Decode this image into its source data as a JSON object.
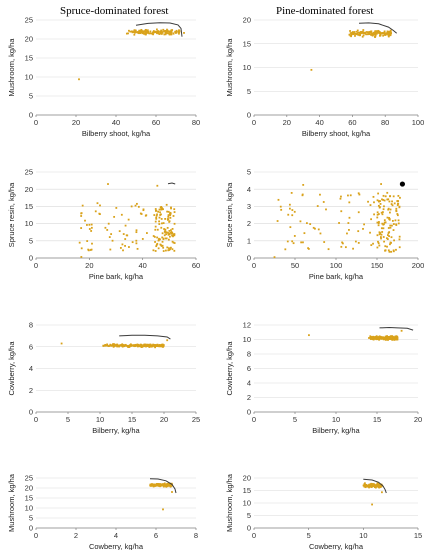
{
  "figure": {
    "column_titles": [
      "Spruce-dominated forest",
      "Pine-dominated forest"
    ]
  },
  "colors": {
    "points": "#d9a21b",
    "frontier": "#3a3a3a",
    "highlight": "#000000",
    "grid": "#d9d9d9",
    "axis": "#7f7f7f"
  },
  "chart_data": [
    {
      "id": "spruce-mushroom-bilberry",
      "type": "scatter",
      "title": "",
      "xlabel": "Bilberry shoot, kg/ha",
      "ylabel": "Mushroom, kg/ha",
      "xlim": [
        0,
        80
      ],
      "ylim": [
        0,
        25
      ],
      "xticks": [
        0,
        20,
        40,
        60,
        80
      ],
      "yticks": [
        0,
        5,
        10,
        15,
        20,
        25
      ],
      "cluster": {
        "x_range": [
          45,
          72
        ],
        "y_center": 21.8,
        "y_spread": 0.9,
        "n": 150
      },
      "outliers": [
        [
          21.5,
          9.4
        ],
        [
          74,
          21.6
        ]
      ],
      "frontier": [
        [
          50,
          23.6
        ],
        [
          56,
          24.1
        ],
        [
          62,
          24.3
        ],
        [
          67,
          24.2
        ],
        [
          71,
          23.7
        ],
        [
          72.5,
          22.8
        ],
        [
          73,
          20.6
        ]
      ]
    },
    {
      "id": "pine-mushroom-bilberry",
      "type": "scatter",
      "title": "",
      "xlabel": "Bilberry shoot, kg/ha",
      "ylabel": "Mushroom, kg/ha",
      "xlim": [
        0,
        100
      ],
      "ylim": [
        0,
        20
      ],
      "xticks": [
        0,
        20,
        40,
        60,
        80,
        100
      ],
      "yticks": [
        0,
        5,
        10,
        15,
        20
      ],
      "cluster": {
        "x_range": [
          58,
          84
        ],
        "y_center": 17.2,
        "y_spread": 0.9,
        "n": 150
      },
      "outliers": [
        [
          35,
          9.5
        ]
      ],
      "frontier": [
        [
          64,
          19.3
        ],
        [
          70,
          19.4
        ],
        [
          76,
          19.2
        ],
        [
          82,
          18.5
        ],
        [
          85,
          17.8
        ],
        [
          87,
          17.2
        ]
      ]
    },
    {
      "id": "spruce-resin-pinebark",
      "type": "scatter",
      "title": "",
      "xlabel": "Pine bark, kg/ha",
      "ylabel": "Spruce resin, kg/ha",
      "xlim": [
        0,
        60
      ],
      "ylim": [
        0,
        25
      ],
      "xticks": [
        0,
        20,
        40,
        60
      ],
      "yticks": [
        0,
        5,
        10,
        15,
        20,
        25
      ],
      "scatter_bands": [
        {
          "x_range": [
            16,
            42
          ],
          "y_range": [
            2,
            16
          ],
          "n": 65
        },
        {
          "x_range": [
            44,
            52
          ],
          "y_range": [
            2,
            16
          ],
          "n": 120
        }
      ],
      "outliers": [
        [
          17,
          0.3
        ],
        [
          27,
          21.5
        ],
        [
          45.5,
          21
        ],
        [
          50.5,
          13
        ]
      ],
      "frontier": [
        [
          49.5,
          21.6
        ],
        [
          51,
          21.8
        ],
        [
          52.2,
          21.5
        ]
      ]
    },
    {
      "id": "pine-resin-pinebark",
      "type": "scatter",
      "title": "",
      "xlabel": "Pine bark, kg/ha",
      "ylabel": "Spruce resin, kg/ha",
      "xlim": [
        0,
        200
      ],
      "ylim": [
        0,
        5
      ],
      "xticks": [
        0,
        50,
        100,
        150,
        200
      ],
      "yticks": [
        0,
        1,
        2,
        3,
        4,
        5
      ],
      "scatter_bands": [
        {
          "x_range": [
            25,
            150
          ],
          "y_range": [
            0.5,
            3.8
          ],
          "n": 70
        },
        {
          "x_range": [
            150,
            178
          ],
          "y_range": [
            0.3,
            3.8
          ],
          "n": 120
        }
      ],
      "outliers": [
        [
          25,
          0.05
        ],
        [
          60,
          4.25
        ],
        [
          155,
          4.3
        ],
        [
          178,
          3.5
        ]
      ],
      "highlight_points": [
        [
          181,
          4.3
        ]
      ],
      "frontier": []
    },
    {
      "id": "spruce-cowberry-bilberry",
      "type": "scatter",
      "title": "",
      "xlabel": "Bilberry, kg/ha",
      "ylabel": "Cowberry, kg/ha",
      "xlim": [
        0,
        25
      ],
      "ylim": [
        0,
        8
      ],
      "xticks": [
        0,
        5,
        10,
        15,
        20,
        25
      ],
      "yticks": [
        0,
        2,
        4,
        6,
        8
      ],
      "cluster": {
        "x_range": [
          10.5,
          20
        ],
        "y_center": 6.1,
        "y_spread": 0.18,
        "n": 190
      },
      "outliers": [
        [
          4,
          6.3
        ],
        [
          20.5,
          6.6
        ]
      ],
      "frontier": [
        [
          13,
          7.0
        ],
        [
          15,
          7.05
        ],
        [
          17,
          7.05
        ],
        [
          19,
          7.0
        ],
        [
          20.5,
          6.9
        ],
        [
          21,
          6.7
        ]
      ]
    },
    {
      "id": "pine-cowberry-bilberry",
      "type": "scatter",
      "title": "",
      "xlabel": "Bilberry, kg/ha",
      "ylabel": "Cowberry, kg/ha",
      "xlim": [
        0,
        20
      ],
      "ylim": [
        0,
        12
      ],
      "xticks": [
        0,
        5,
        10,
        15,
        20
      ],
      "yticks": [
        0,
        2,
        4,
        6,
        8,
        10,
        12
      ],
      "cluster": {
        "x_range": [
          14,
          17.5
        ],
        "y_center": 10.2,
        "y_spread": 0.35,
        "n": 190
      },
      "outliers": [
        [
          6.7,
          10.6
        ],
        [
          18,
          11.2
        ]
      ],
      "frontier": [
        [
          15.3,
          11.6
        ],
        [
          16.5,
          11.65
        ],
        [
          17.5,
          11.6
        ],
        [
          18.7,
          11.55
        ],
        [
          19.4,
          11.3
        ]
      ]
    },
    {
      "id": "spruce-mushroom-cowberry",
      "type": "scatter",
      "title": "",
      "xlabel": "Cowberry, kg/ha",
      "ylabel": "Mushroom, kg/ha",
      "xlim": [
        0,
        8
      ],
      "ylim": [
        0,
        25
      ],
      "xticks": [
        0,
        2,
        4,
        6,
        8
      ],
      "yticks": [
        0,
        5,
        10,
        15,
        20,
        25
      ],
      "cluster": {
        "x_range": [
          5.7,
          6.8
        ],
        "y_center": 21.5,
        "y_spread": 1.0,
        "n": 150
      },
      "outliers": [
        [
          6.35,
          9.3
        ],
        [
          6.8,
          18
        ]
      ],
      "frontier": [
        [
          5.7,
          24.6
        ],
        [
          6.1,
          24.5
        ],
        [
          6.5,
          23.6
        ],
        [
          6.8,
          21.8
        ],
        [
          6.95,
          19.5
        ],
        [
          7.0,
          17.5
        ]
      ]
    },
    {
      "id": "pine-mushroom-cowberry",
      "type": "scatter",
      "title": "",
      "xlabel": "Cowberry, kg/ha",
      "ylabel": "Mushroom, kg/ha",
      "xlim": [
        0,
        15
      ],
      "ylim": [
        0,
        20
      ],
      "xticks": [
        0,
        5,
        10,
        15
      ],
      "yticks": [
        0,
        5,
        10,
        15,
        20
      ],
      "cluster": {
        "x_range": [
          10,
          11.7
        ],
        "y_center": 17.0,
        "y_spread": 1.0,
        "n": 150
      },
      "outliers": [
        [
          10.8,
          9.4
        ],
        [
          11.7,
          14.3
        ]
      ],
      "frontier": [
        [
          10,
          19.5
        ],
        [
          10.8,
          19.2
        ],
        [
          11.4,
          18.3
        ],
        [
          11.8,
          16.8
        ],
        [
          12.0,
          15.3
        ],
        [
          12.1,
          14.0
        ]
      ]
    }
  ]
}
